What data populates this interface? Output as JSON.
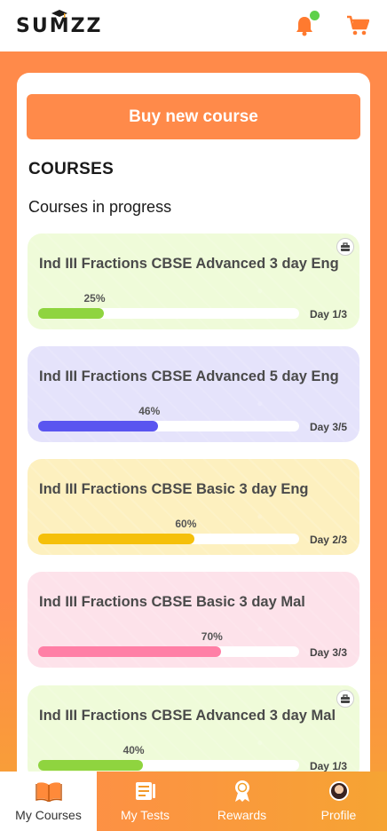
{
  "app": {
    "logo_text": "SUMZZ"
  },
  "header": {
    "notification_icon": "bell-icon",
    "cart_icon": "cart-icon"
  },
  "main": {
    "buy_button": "Buy new course",
    "section_title": "COURSES",
    "section_subtitle": "Courses in progress",
    "courses": [
      {
        "title": "Ind III Fractions CBSE Advanced 3 day Eng",
        "progress_label": "25%",
        "progress": 0.25,
        "day": "Day 1/3",
        "has_kit": true,
        "color": "#8fd43f",
        "bg": "#effbd9"
      },
      {
        "title": "Ind III Fractions CBSE Advanced 5 day Eng",
        "progress_label": "46%",
        "progress": 0.46,
        "day": "Day 3/5",
        "has_kit": false,
        "color": "#5a55f0",
        "bg": "#e5e3fb"
      },
      {
        "title": "Ind III Fractions CBSE Basic 3 day Eng",
        "progress_label": "60%",
        "progress": 0.6,
        "day": "Day 2/3",
        "has_kit": false,
        "color": "#f5c00a",
        "bg": "#fdf0bf"
      },
      {
        "title": "Ind III Fractions CBSE Basic 3 day Mal",
        "progress_label": "70%",
        "progress": 0.7,
        "day": "Day 3/3",
        "has_kit": false,
        "color": "#ff7fa6",
        "bg": "#fde2ea"
      },
      {
        "title": "Ind III Fractions CBSE Advanced 3 day Mal",
        "progress_label": "40%",
        "progress": 0.4,
        "day": "Day 1/3",
        "has_kit": true,
        "color": "#8fd43f",
        "bg": "#effbd9"
      }
    ]
  },
  "bottom_nav": {
    "items": [
      {
        "label": "My Courses",
        "icon": "open-book-icon",
        "active": true
      },
      {
        "label": "My Tests",
        "icon": "test-sheet-icon",
        "active": false
      },
      {
        "label": "Rewards",
        "icon": "medal-icon",
        "active": false
      },
      {
        "label": "Profile",
        "icon": "avatar",
        "active": false
      }
    ]
  },
  "colors": {
    "brand_orange": "#ff8a4a",
    "accent_yellow": "#f6a433"
  }
}
